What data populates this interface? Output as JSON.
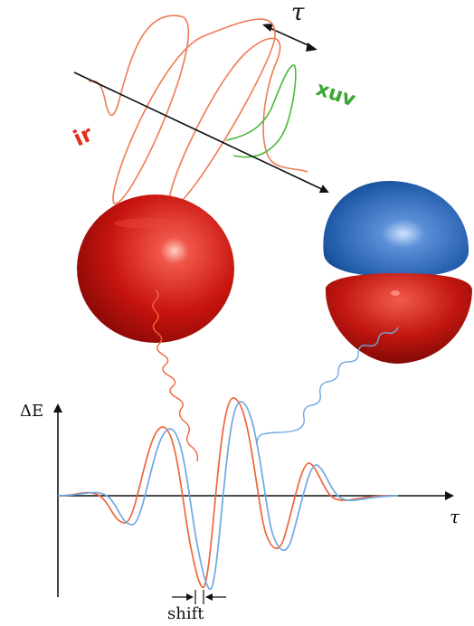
{
  "labels": {
    "tau_top": "τ",
    "xuv": "xuv",
    "ir": "ir",
    "delta_e": "ΔE",
    "tau_axis": "τ",
    "shift": "shift"
  },
  "colors": {
    "ir_wave": "#f07a55",
    "xuv_wave": "#4bb83a",
    "signal_red": "#f0643c",
    "signal_blue": "#6fa8e0",
    "orbital_red": "#c0160f",
    "orbital_blue": "#1f5fae",
    "axis": "#111111",
    "label_ir": "#e0301e",
    "label_xuv": "#3aa830"
  }
}
